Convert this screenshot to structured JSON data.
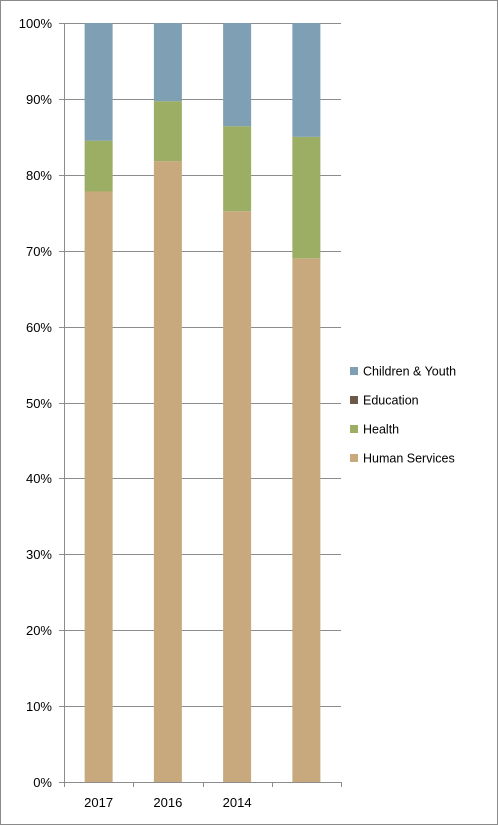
{
  "chart_data": {
    "type": "bar",
    "stacked": true,
    "percent": true,
    "categories": [
      "2017",
      "2016",
      "2014",
      ""
    ],
    "series": [
      {
        "name": "Human Services",
        "color": "#C8A97E",
        "values": [
          77.8,
          81.8,
          75.2,
          69.0
        ]
      },
      {
        "name": "Health",
        "color": "#9BAE64",
        "values": [
          6.7,
          7.9,
          11.2,
          16.0
        ]
      },
      {
        "name": "Education",
        "color": "#6B5A4A",
        "values": [
          0,
          0,
          0,
          0
        ]
      },
      {
        "name": "Children & Youth",
        "color": "#7F9FB4",
        "values": [
          15.5,
          10.3,
          13.6,
          15.0
        ]
      }
    ],
    "legend_order": [
      "Children & Youth",
      "Education",
      "Health",
      "Human Services"
    ],
    "y_ticks": [
      "0%",
      "10%",
      "20%",
      "30%",
      "40%",
      "50%",
      "60%",
      "70%",
      "80%",
      "90%",
      "100%"
    ],
    "ylim": [
      0,
      100
    ],
    "grid": true,
    "legend_position": "right",
    "title": "",
    "xlabel": "",
    "ylabel": ""
  }
}
